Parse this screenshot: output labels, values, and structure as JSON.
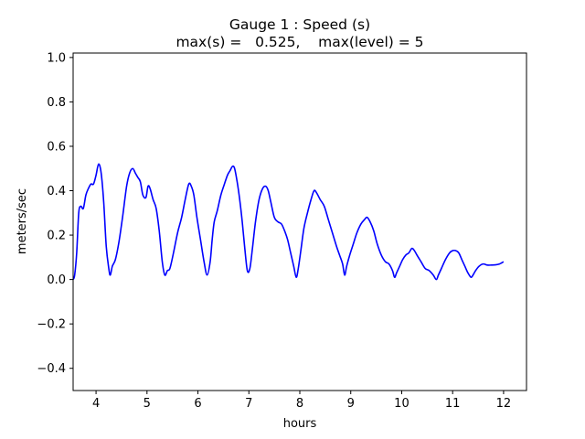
{
  "chart_data": {
    "type": "line",
    "title": "Gauge 1 : Speed (s)",
    "subtitle": "max(s) =   0.525,    max(level) = 5",
    "xlabel": "hours",
    "ylabel": "meters/sec",
    "xlim": [
      3.55,
      12.45
    ],
    "ylim": [
      -0.5,
      1.02
    ],
    "xticks": [
      4,
      5,
      6,
      7,
      8,
      9,
      10,
      11,
      12
    ],
    "yticks": [
      -0.4,
      -0.2,
      0.0,
      0.2,
      0.4,
      0.6,
      0.8,
      1.0
    ],
    "xtick_labels": [
      "4",
      "5",
      "6",
      "7",
      "8",
      "9",
      "10",
      "11",
      "12"
    ],
    "ytick_labels": [
      "−0.4",
      "−0.2",
      "0.0",
      "0.2",
      "0.4",
      "0.6",
      "0.8",
      "1.0"
    ],
    "grid": false,
    "series": [
      {
        "name": "speed",
        "color": "#0000ff",
        "x": [
          3.55,
          3.58,
          3.62,
          3.66,
          3.7,
          3.75,
          3.8,
          3.85,
          3.9,
          3.95,
          4.0,
          4.05,
          4.1,
          4.15,
          4.2,
          4.25,
          4.28,
          4.32,
          4.38,
          4.45,
          4.52,
          4.6,
          4.66,
          4.72,
          4.77,
          4.82,
          4.87,
          4.92,
          4.98,
          5.02,
          5.06,
          5.12,
          5.18,
          5.24,
          5.3,
          5.35,
          5.4,
          5.45,
          5.52,
          5.6,
          5.68,
          5.75,
          5.82,
          5.87,
          5.92,
          5.98,
          6.05,
          6.12,
          6.18,
          6.24,
          6.28,
          6.32,
          6.38,
          6.45,
          6.52,
          6.58,
          6.63,
          6.68,
          6.72,
          6.77,
          6.82,
          6.87,
          6.92,
          6.97,
          7.02,
          7.07,
          7.13,
          7.2,
          7.27,
          7.33,
          7.38,
          7.43,
          7.5,
          7.57,
          7.64,
          7.7,
          7.76,
          7.82,
          7.88,
          7.93,
          7.97,
          8.02,
          8.08,
          8.15,
          8.22,
          8.28,
          8.33,
          8.4,
          8.48,
          8.56,
          8.64,
          8.72,
          8.78,
          8.84,
          8.88,
          8.92,
          8.98,
          9.05,
          9.12,
          9.2,
          9.27,
          9.32,
          9.38,
          9.45,
          9.52,
          9.6,
          9.68,
          9.75,
          9.82,
          9.86,
          9.9,
          9.96,
          10.02,
          10.08,
          10.14,
          10.2,
          10.25,
          10.3,
          10.38,
          10.46,
          10.54,
          10.62,
          10.68,
          10.72,
          10.78,
          10.86,
          10.94,
          11.0,
          11.06,
          11.12,
          11.18,
          11.24,
          11.3,
          11.36,
          11.4,
          11.45,
          11.52,
          11.6,
          11.68,
          11.76,
          11.84,
          11.92,
          12.0
        ],
        "y": [
          0.0,
          0.02,
          0.12,
          0.3,
          0.33,
          0.32,
          0.38,
          0.41,
          0.43,
          0.43,
          0.47,
          0.52,
          0.48,
          0.35,
          0.15,
          0.05,
          0.02,
          0.06,
          0.09,
          0.17,
          0.28,
          0.42,
          0.48,
          0.5,
          0.48,
          0.46,
          0.44,
          0.38,
          0.37,
          0.42,
          0.41,
          0.36,
          0.32,
          0.22,
          0.08,
          0.02,
          0.04,
          0.05,
          0.12,
          0.21,
          0.28,
          0.36,
          0.43,
          0.42,
          0.38,
          0.28,
          0.18,
          0.08,
          0.02,
          0.08,
          0.18,
          0.26,
          0.31,
          0.38,
          0.43,
          0.47,
          0.49,
          0.51,
          0.5,
          0.44,
          0.36,
          0.26,
          0.14,
          0.04,
          0.05,
          0.14,
          0.26,
          0.36,
          0.41,
          0.42,
          0.4,
          0.35,
          0.28,
          0.26,
          0.25,
          0.22,
          0.18,
          0.12,
          0.06,
          0.01,
          0.05,
          0.13,
          0.23,
          0.3,
          0.36,
          0.4,
          0.39,
          0.36,
          0.33,
          0.27,
          0.21,
          0.15,
          0.11,
          0.07,
          0.02,
          0.06,
          0.11,
          0.16,
          0.21,
          0.25,
          0.27,
          0.28,
          0.26,
          0.22,
          0.16,
          0.11,
          0.08,
          0.07,
          0.04,
          0.01,
          0.03,
          0.06,
          0.09,
          0.11,
          0.12,
          0.14,
          0.13,
          0.11,
          0.08,
          0.05,
          0.04,
          0.02,
          0.0,
          0.02,
          0.05,
          0.09,
          0.12,
          0.13,
          0.13,
          0.12,
          0.09,
          0.06,
          0.03,
          0.01,
          0.02,
          0.04,
          0.06,
          0.07,
          0.065,
          0.065,
          0.066,
          0.07,
          0.08
        ]
      }
    ]
  }
}
